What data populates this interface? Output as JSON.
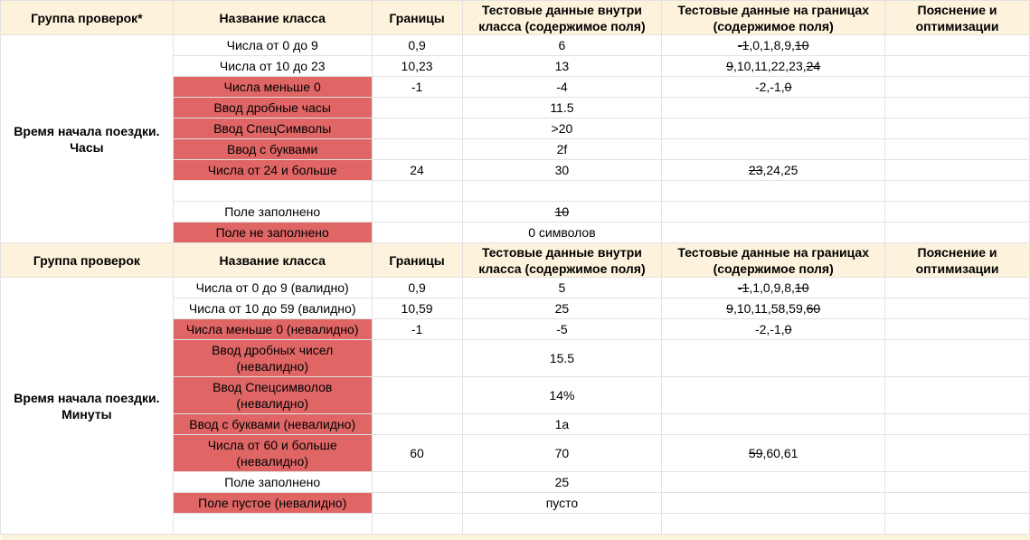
{
  "sections": [
    {
      "headers": [
        "Группа проверок*",
        "Название класса",
        "Границы",
        "Тестовые данные внутри класса (содержимое поля)",
        "Тестовые данные на границах (содержимое поля)",
        "Пояснение и оптимизации"
      ],
      "group": "Время начала поездки. Часы",
      "rows": [
        {
          "cls": "Числа от 0 до 9",
          "invalid": false,
          "bounds": "0,9",
          "inside": "6",
          "edges": [
            {
              "t": "-1",
              "s": true
            },
            {
              "t": ",0,1,8,9,",
              "s": false
            },
            {
              "t": "10",
              "s": true
            }
          ]
        },
        {
          "cls": "Числа от 10 до 23",
          "invalid": false,
          "bounds": "10,23",
          "inside": "13",
          "edges": [
            {
              "t": "9",
              "s": true
            },
            {
              "t": ",10,11,22,23,",
              "s": false
            },
            {
              "t": "24",
              "s": true
            }
          ]
        },
        {
          "cls": "Числа меньше 0",
          "invalid": true,
          "bounds": "-1",
          "inside": "-4",
          "edges": [
            {
              "t": "-2,-1,",
              "s": false
            },
            {
              "t": "0",
              "s": true
            }
          ]
        },
        {
          "cls": "Ввод дробные часы",
          "invalid": true,
          "bounds": "",
          "inside": "11.5",
          "edges": []
        },
        {
          "cls": "Ввод СпецСимволы",
          "invalid": true,
          "bounds": "",
          "inside": ">20",
          "edges": []
        },
        {
          "cls": "Ввод с буквами",
          "invalid": true,
          "bounds": "",
          "inside": "2f",
          "edges": []
        },
        {
          "cls": "Числа от 24 и больше",
          "invalid": true,
          "bounds": "24",
          "inside": "30",
          "edges": [
            {
              "t": "23",
              "s": true
            },
            {
              "t": ",24,25",
              "s": false
            }
          ]
        },
        {
          "cls": "",
          "invalid": false,
          "bounds": "",
          "inside": "",
          "edges": []
        },
        {
          "cls": "Поле заполнено",
          "invalid": false,
          "bounds": "",
          "inside": "10",
          "insideStrike": true,
          "edges": []
        },
        {
          "cls": "Поле не заполнено",
          "invalid": true,
          "bounds": "",
          "inside": "0 символов",
          "edges": []
        }
      ]
    },
    {
      "headers": [
        "Группа проверок",
        "Название класса",
        "Границы",
        "Тестовые данные внутри класса (содержимое поля)",
        "Тестовые данные на границах (содержимое поля)",
        "Пояснение и оптимизации"
      ],
      "group": "Время начала поездки. Минуты",
      "rows": [
        {
          "cls": "Числа от 0 до 9 (валидно)",
          "invalid": false,
          "bounds": "0,9",
          "inside": "5",
          "edges": [
            {
              "t": "-1",
              "s": true
            },
            {
              "t": ",1,0,9,8,",
              "s": false
            },
            {
              "t": "10",
              "s": true
            }
          ]
        },
        {
          "cls": "Числа от 10 до 59 (валидно)",
          "invalid": false,
          "bounds": "10,59",
          "inside": "25",
          "edges": [
            {
              "t": "9",
              "s": true
            },
            {
              "t": ",10,11,58,59,",
              "s": false
            },
            {
              "t": "60",
              "s": true
            }
          ]
        },
        {
          "cls": "Числа меньше 0 (невалидно)",
          "invalid": true,
          "bounds": "-1",
          "inside": "-5",
          "edges": [
            {
              "t": "-2,-1,",
              "s": false
            },
            {
              "t": "0",
              "s": true
            }
          ]
        },
        {
          "cls": "Ввод дробных чисел (невалидно)",
          "invalid": true,
          "bounds": "",
          "inside": "15.5",
          "edges": [],
          "tall": true
        },
        {
          "cls": "Ввод Спецсимволов (невалидно)",
          "invalid": true,
          "bounds": "",
          "inside": "14%",
          "edges": [],
          "tall": true
        },
        {
          "cls": "Ввод с буквами (невалидно)",
          "invalid": true,
          "bounds": "",
          "inside": "1а",
          "edges": []
        },
        {
          "cls": "Числа от 60 и больше (невалидно)",
          "invalid": true,
          "bounds": "60",
          "inside": "70",
          "edges": [
            {
              "t": "59",
              "s": true
            },
            {
              "t": ",60,61",
              "s": false
            }
          ],
          "tall": true
        },
        {
          "cls": "Поле заполнено",
          "invalid": false,
          "bounds": "",
          "inside": "25",
          "edges": []
        },
        {
          "cls": "Поле пустое (невалидно)",
          "invalid": true,
          "bounds": "",
          "inside": "пусто",
          "edges": []
        },
        {
          "cls": "",
          "invalid": false,
          "bounds": "",
          "inside": "",
          "edges": []
        }
      ]
    }
  ],
  "colors": {
    "header_bg": "#fdf3dc",
    "invalid_bg": "#e06666"
  }
}
